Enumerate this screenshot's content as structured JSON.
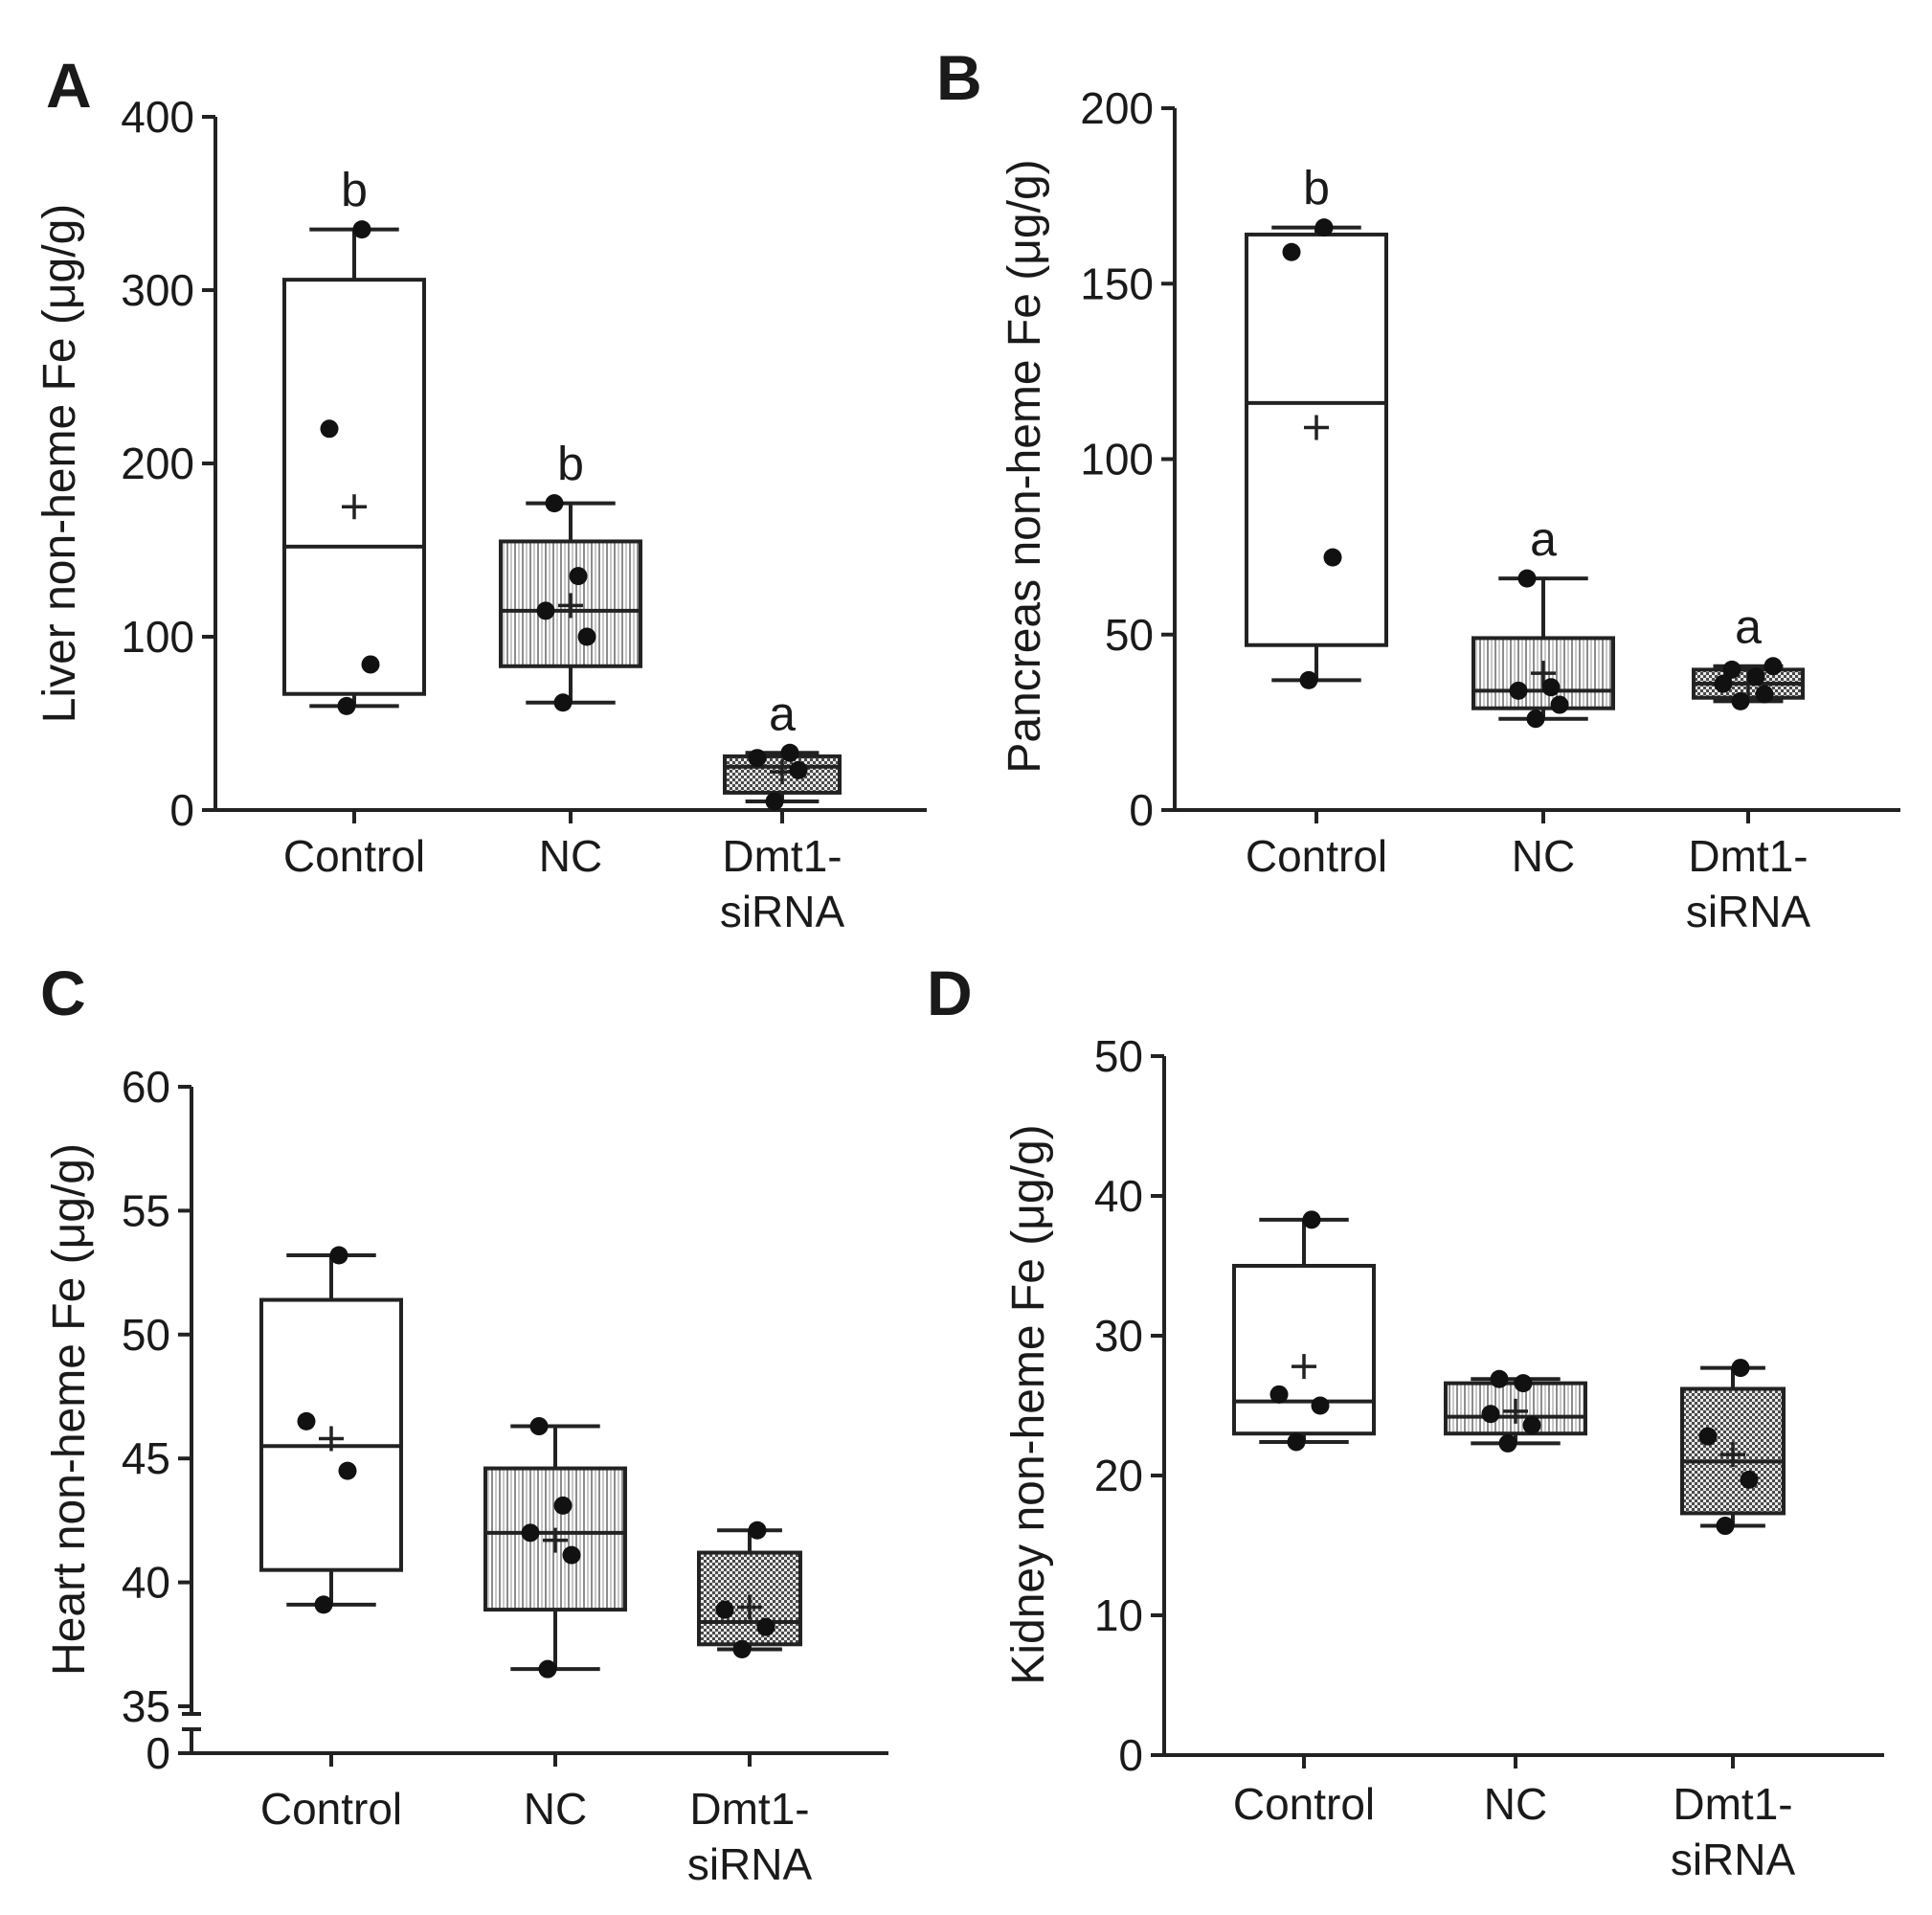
{
  "figure": {
    "colors": {
      "ink": "#1a1a1a",
      "background": "#ffffff",
      "stipple": "#555555",
      "stripe": "#9a9a9a"
    },
    "categories": [
      "Control",
      "NC",
      "Dmt1-\nsiRNA"
    ]
  },
  "chart_data": [
    {
      "type": "box",
      "panel": "A",
      "ylabel": "Liver non-heme Fe (μg/g)",
      "ylim": [
        0,
        400
      ],
      "yticks": [
        0,
        100,
        200,
        300,
        400
      ],
      "categories": [
        "Control",
        "NC",
        "Dmt1-\nsiRNA"
      ],
      "series": [
        {
          "name": "Control",
          "fill": "white",
          "whisker_low": 60,
          "q1": 67,
          "median": 152,
          "q3": 306,
          "whisker_high": 335,
          "mean": 175,
          "points": [
            60,
            84,
            220,
            335
          ],
          "sig": "b"
        },
        {
          "name": "NC",
          "fill": "stripes",
          "whisker_low": 62,
          "q1": 83,
          "median": 115,
          "q3": 155,
          "whisker_high": 177,
          "mean": 118,
          "points": [
            62,
            100,
            115,
            135,
            177
          ],
          "sig": "b"
        },
        {
          "name": "Dmt1-siRNA",
          "fill": "stipple",
          "whisker_low": 5,
          "q1": 10,
          "median": 25,
          "q3": 31,
          "whisker_high": 33,
          "mean": 22,
          "points": [
            5,
            23,
            30,
            33
          ],
          "sig": "a"
        }
      ]
    },
    {
      "type": "box",
      "panel": "B",
      "ylabel": "Pancreas non-heme Fe (μg/g)",
      "ylim": [
        0,
        200
      ],
      "yticks": [
        0,
        50,
        100,
        150,
        200
      ],
      "categories": [
        "Control",
        "NC",
        "Dmt1-\nsiRNA"
      ],
      "series": [
        {
          "name": "Control",
          "fill": "white",
          "whisker_low": 37,
          "q1": 47,
          "median": 116,
          "q3": 164,
          "whisker_high": 166,
          "mean": 109,
          "points": [
            37,
            72,
            159,
            166
          ],
          "sig": "b"
        },
        {
          "name": "NC",
          "fill": "stripes",
          "whisker_low": 26,
          "q1": 29,
          "median": 34,
          "q3": 49,
          "whisker_high": 66,
          "mean": 39,
          "points": [
            26,
            30,
            34,
            35,
            66
          ],
          "sig": "a"
        },
        {
          "name": "Dmt1-siRNA",
          "fill": "stipple",
          "whisker_low": 31,
          "q1": 32,
          "median": 36,
          "q3": 40,
          "whisker_high": 41,
          "mean": 36,
          "points": [
            31,
            33,
            36,
            38,
            40,
            41
          ],
          "sig": "a"
        }
      ]
    },
    {
      "type": "box",
      "panel": "C",
      "ylabel": "Heart non-heme Fe (μg/g)",
      "ylim": [
        35,
        60
      ],
      "yticks": [
        35,
        40,
        45,
        50,
        55,
        60
      ],
      "axis_break": true,
      "break_tick": 0,
      "categories": [
        "Control",
        "NC",
        "Dmt1-\nsiRNA"
      ],
      "series": [
        {
          "name": "Control",
          "fill": "white",
          "whisker_low": 39.1,
          "q1": 40.5,
          "median": 45.5,
          "q3": 51.4,
          "whisker_high": 53.2,
          "mean": 45.8,
          "points": [
            39.1,
            44.5,
            46.5,
            53.2
          ],
          "sig": ""
        },
        {
          "name": "NC",
          "fill": "stripes",
          "whisker_low": 36.5,
          "q1": 38.9,
          "median": 42.0,
          "q3": 44.6,
          "whisker_high": 46.3,
          "mean": 41.7,
          "points": [
            36.5,
            41.1,
            42.0,
            43.1,
            46.3
          ],
          "sig": ""
        },
        {
          "name": "Dmt1-siRNA",
          "fill": "stipple",
          "whisker_low": 37.3,
          "q1": 37.5,
          "median": 38.4,
          "q3": 41.2,
          "whisker_high": 42.1,
          "mean": 39.0,
          "points": [
            37.3,
            38.2,
            38.9,
            42.1
          ],
          "sig": ""
        }
      ]
    },
    {
      "type": "box",
      "panel": "D",
      "ylabel": "Kidney non-heme Fe (μg/g)",
      "ylim": [
        0,
        50
      ],
      "yticks": [
        0,
        10,
        20,
        30,
        40,
        50
      ],
      "categories": [
        "Control",
        "NC",
        "Dmt1-\nsiRNA"
      ],
      "series": [
        {
          "name": "Control",
          "fill": "white",
          "whisker_low": 22.4,
          "q1": 23.0,
          "median": 25.3,
          "q3": 35.0,
          "whisker_high": 38.3,
          "mean": 27.8,
          "points": [
            22.4,
            25.0,
            25.8,
            38.3
          ],
          "sig": ""
        },
        {
          "name": "NC",
          "fill": "stripes",
          "whisker_low": 22.3,
          "q1": 23.0,
          "median": 24.2,
          "q3": 26.6,
          "whisker_high": 26.9,
          "mean": 24.6,
          "points": [
            22.3,
            23.6,
            24.4,
            26.6,
            26.9
          ],
          "sig": ""
        },
        {
          "name": "Dmt1-siRNA",
          "fill": "stipple",
          "whisker_low": 16.4,
          "q1": 17.3,
          "median": 21.0,
          "q3": 26.2,
          "whisker_high": 27.7,
          "mean": 21.5,
          "points": [
            16.4,
            19.7,
            22.8,
            27.7
          ],
          "sig": ""
        }
      ]
    }
  ]
}
